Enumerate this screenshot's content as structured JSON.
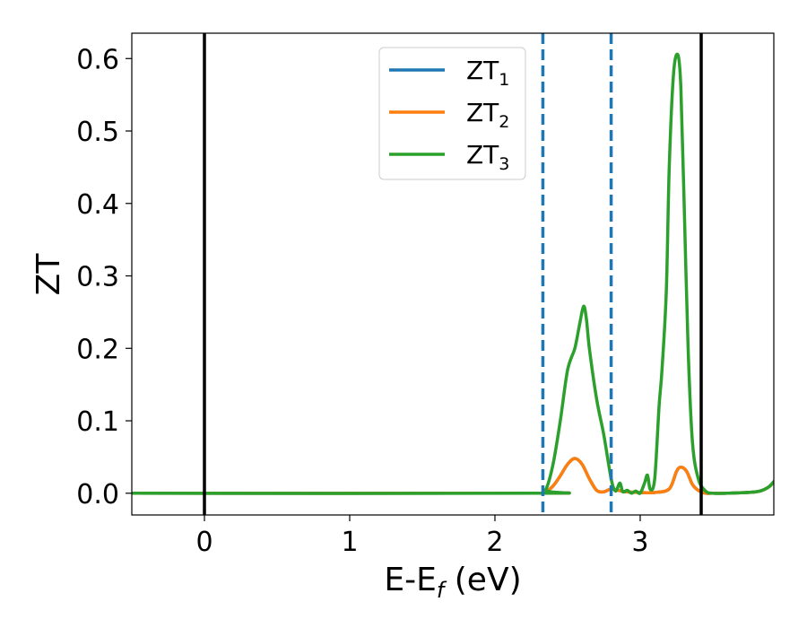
{
  "chart_data": {
    "type": "line",
    "title": "",
    "xlabel": "E-E_f (eV)",
    "xlabel_parts": {
      "main": "E-E",
      "sub": "f",
      "rest": " (eV)"
    },
    "ylabel": "ZT",
    "xlim": [
      -0.5,
      3.92
    ],
    "ylim": [
      -0.03,
      0.635
    ],
    "xticks": [
      0,
      1,
      2,
      3
    ],
    "xtick_labels": [
      "0",
      "1",
      "2",
      "3"
    ],
    "yticks": [
      0.0,
      0.1,
      0.2,
      0.3,
      0.4,
      0.5,
      0.6
    ],
    "ytick_labels": [
      "0.0",
      "0.1",
      "0.2",
      "0.3",
      "0.4",
      "0.5",
      "0.6"
    ],
    "grid": false,
    "legend_position": "upper-center",
    "vlines": [
      {
        "x": 0.0,
        "style": "solid",
        "color": "#000000"
      },
      {
        "x": 2.33,
        "style": "dashed",
        "color": "#1f77b4"
      },
      {
        "x": 2.8,
        "style": "dashed",
        "color": "#1f77b4"
      },
      {
        "x": 3.42,
        "style": "solid",
        "color": "#000000"
      }
    ],
    "series": [
      {
        "name": "ZT_1",
        "label_main": "ZT",
        "label_sub": "1",
        "color": "#1f77b4",
        "x": [
          -0.5,
          2.3,
          2.35,
          2.4,
          2.45,
          2.5,
          2.55,
          2.6,
          2.65,
          2.7,
          2.75,
          2.8,
          2.85,
          2.9,
          3.0,
          3.1,
          3.2,
          3.25,
          3.28,
          3.32,
          3.36,
          3.4,
          3.45,
          3.5,
          3.6,
          3.8,
          3.88,
          3.92
        ],
        "y": [
          0.0,
          0.0,
          0.002,
          0.01,
          0.024,
          0.04,
          0.048,
          0.04,
          0.02,
          0.004,
          0.002,
          0.006,
          0.004,
          0.002,
          0.001,
          0.001,
          0.006,
          0.03,
          0.036,
          0.03,
          0.012,
          0.004,
          0.0,
          0.0,
          0.0,
          0.002,
          0.008,
          0.016
        ]
      },
      {
        "name": "ZT_2",
        "label_main": "ZT",
        "label_sub": "2",
        "color": "#ff7f0e",
        "x": [
          -0.5,
          2.3,
          2.35,
          2.4,
          2.45,
          2.5,
          2.55,
          2.6,
          2.65,
          2.7,
          2.75,
          2.8,
          2.85,
          2.9,
          3.0,
          3.1,
          3.2,
          3.25,
          3.28,
          3.32,
          3.36,
          3.4,
          3.45,
          3.5,
          3.6,
          3.8,
          3.88,
          3.92
        ],
        "y": [
          0.0,
          0.0,
          0.002,
          0.01,
          0.024,
          0.04,
          0.048,
          0.04,
          0.02,
          0.004,
          0.002,
          0.006,
          0.004,
          0.002,
          0.001,
          0.001,
          0.006,
          0.03,
          0.036,
          0.03,
          0.012,
          0.004,
          0.0,
          0.0,
          0.0,
          0.002,
          0.008,
          0.016
        ]
      },
      {
        "name": "ZT_3",
        "label_main": "ZT",
        "label_sub": "3",
        "color": "#2ca02c",
        "x": [
          -0.5,
          2.3,
          2.35,
          2.4,
          2.45,
          2.5,
          2.55,
          2.58,
          2.61,
          2.63,
          2.65,
          2.7,
          2.75,
          2.8,
          2.83,
          2.86,
          2.88,
          2.91,
          2.94,
          2.97,
          3.0,
          3.03,
          3.05,
          3.07,
          3.1,
          3.13,
          3.15,
          3.18,
          3.2,
          3.23,
          3.26,
          3.28,
          3.3,
          3.33,
          3.36,
          3.4,
          3.45,
          3.5,
          3.6,
          3.8,
          3.88,
          3.92
        ],
        "y": [
          0.0,
          0.0,
          0.005,
          0.04,
          0.1,
          0.17,
          0.2,
          0.23,
          0.258,
          0.24,
          0.2,
          0.13,
          0.08,
          0.02,
          0.003,
          0.014,
          0.002,
          0.004,
          0.0,
          0.003,
          0.0,
          0.014,
          0.025,
          0.005,
          0.02,
          0.12,
          0.17,
          0.28,
          0.45,
          0.58,
          0.605,
          0.56,
          0.42,
          0.2,
          0.07,
          0.02,
          0.003,
          0.0,
          0.0,
          0.002,
          0.008,
          0.016
        ]
      }
    ]
  }
}
